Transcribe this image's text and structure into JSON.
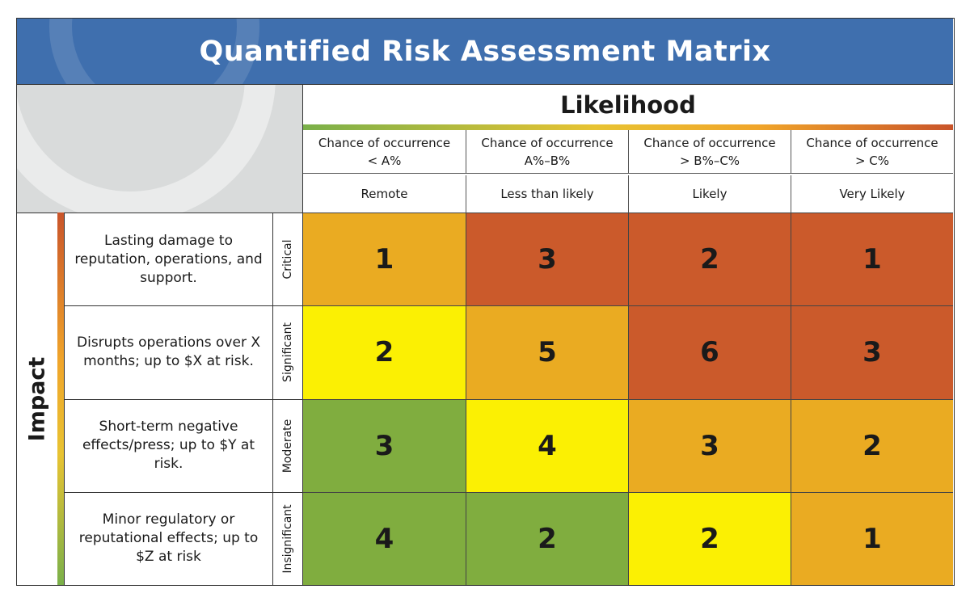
{
  "title": "Quantified Risk Assessment Matrix",
  "likelihood": {
    "label": "Likelihood",
    "columns": [
      {
        "line1": "Chance of occurrence",
        "line2": "< A%",
        "label": "Remote"
      },
      {
        "line1": "Chance of occurrence",
        "line2": "A%–B%",
        "label": "Less than likely"
      },
      {
        "line1": "Chance of occurrence",
        "line2": "> B%–C%",
        "label": "Likely"
      },
      {
        "line1": "Chance of occurrence",
        "line2": "> C%",
        "label": "Very Likely"
      }
    ]
  },
  "impact": {
    "label": "Impact",
    "rows": [
      {
        "severity": "Critical",
        "description": "Lasting damage to reputation, operations, and support."
      },
      {
        "severity": "Significant",
        "description": "Disrupts operations over X months; up to $X at risk."
      },
      {
        "severity": "Moderate",
        "description": "Short-term negative effects/press; up to $Y at risk."
      },
      {
        "severity": "Insignificant",
        "description": "Minor regulatory or reputational effects; up to $Z at risk"
      }
    ]
  },
  "grid": {
    "values": [
      [
        1,
        3,
        2,
        1
      ],
      [
        2,
        5,
        6,
        3
      ],
      [
        3,
        4,
        3,
        2
      ],
      [
        4,
        2,
        2,
        1
      ]
    ],
    "colors": [
      [
        "#eaab22",
        "#cb5a2b",
        "#cb5a2b",
        "#cb5a2b"
      ],
      [
        "#fbf003",
        "#eaab22",
        "#cb5a2b",
        "#cb5a2b"
      ],
      [
        "#80ad3f",
        "#fbf003",
        "#eaab22",
        "#eaab22"
      ],
      [
        "#80ad3f",
        "#80ad3f",
        "#fbf003",
        "#eaab22"
      ]
    ]
  },
  "colors": {
    "header_blue": "#3f6fae",
    "corner_grey": "#d9dbdb"
  }
}
